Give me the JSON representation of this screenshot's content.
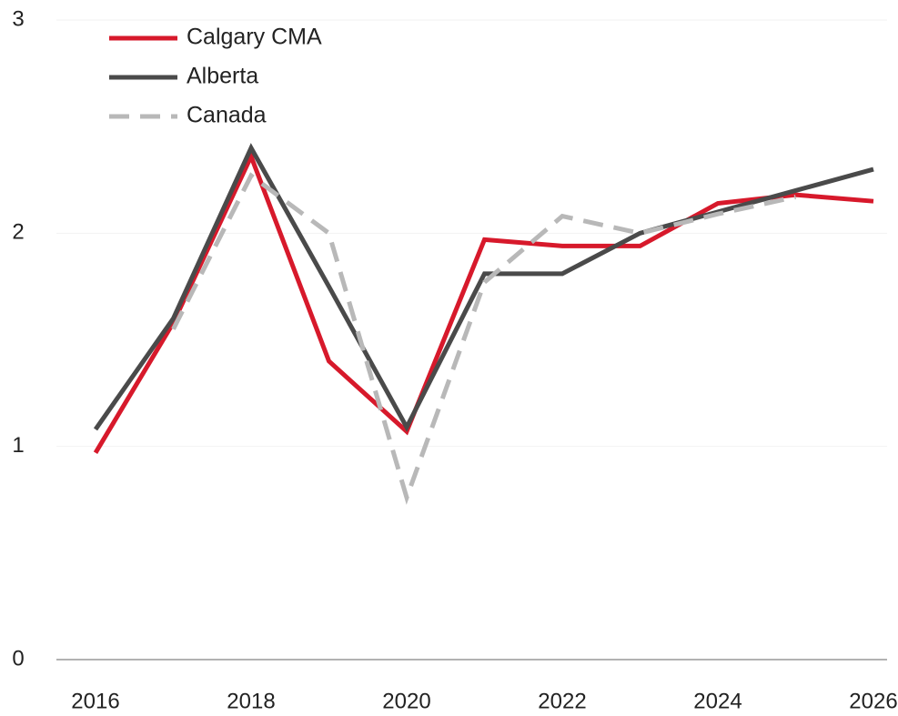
{
  "chart_data": {
    "type": "line",
    "x": [
      2016,
      2017,
      2018,
      2019,
      2020,
      2021,
      2022,
      2023,
      2024,
      2025,
      2026
    ],
    "series": [
      {
        "name": "Calgary CMA",
        "color": "#d7192b",
        "dash": false,
        "values": [
          0.97,
          1.58,
          2.36,
          1.4,
          1.07,
          1.97,
          1.94,
          1.94,
          2.14,
          2.18,
          2.15
        ]
      },
      {
        "name": "Alberta",
        "color": "#4a4a4a",
        "dash": false,
        "values": [
          1.08,
          1.6,
          2.4,
          1.75,
          1.09,
          1.81,
          1.81,
          2.0,
          2.1,
          2.2,
          2.3
        ]
      },
      {
        "name": "Canada",
        "color": "#b8b8b8",
        "dash": true,
        "values": [
          null,
          1.55,
          2.27,
          2.0,
          0.76,
          1.77,
          2.08,
          2.0,
          2.09,
          2.17,
          null
        ]
      }
    ],
    "xlim": [
      2016,
      2026
    ],
    "xticks": [
      2016,
      2018,
      2020,
      2022,
      2024,
      2026
    ],
    "ylim": [
      0,
      3
    ],
    "yticks": [
      0,
      1,
      2,
      3
    ],
    "grid": true,
    "legend": "top-left"
  }
}
